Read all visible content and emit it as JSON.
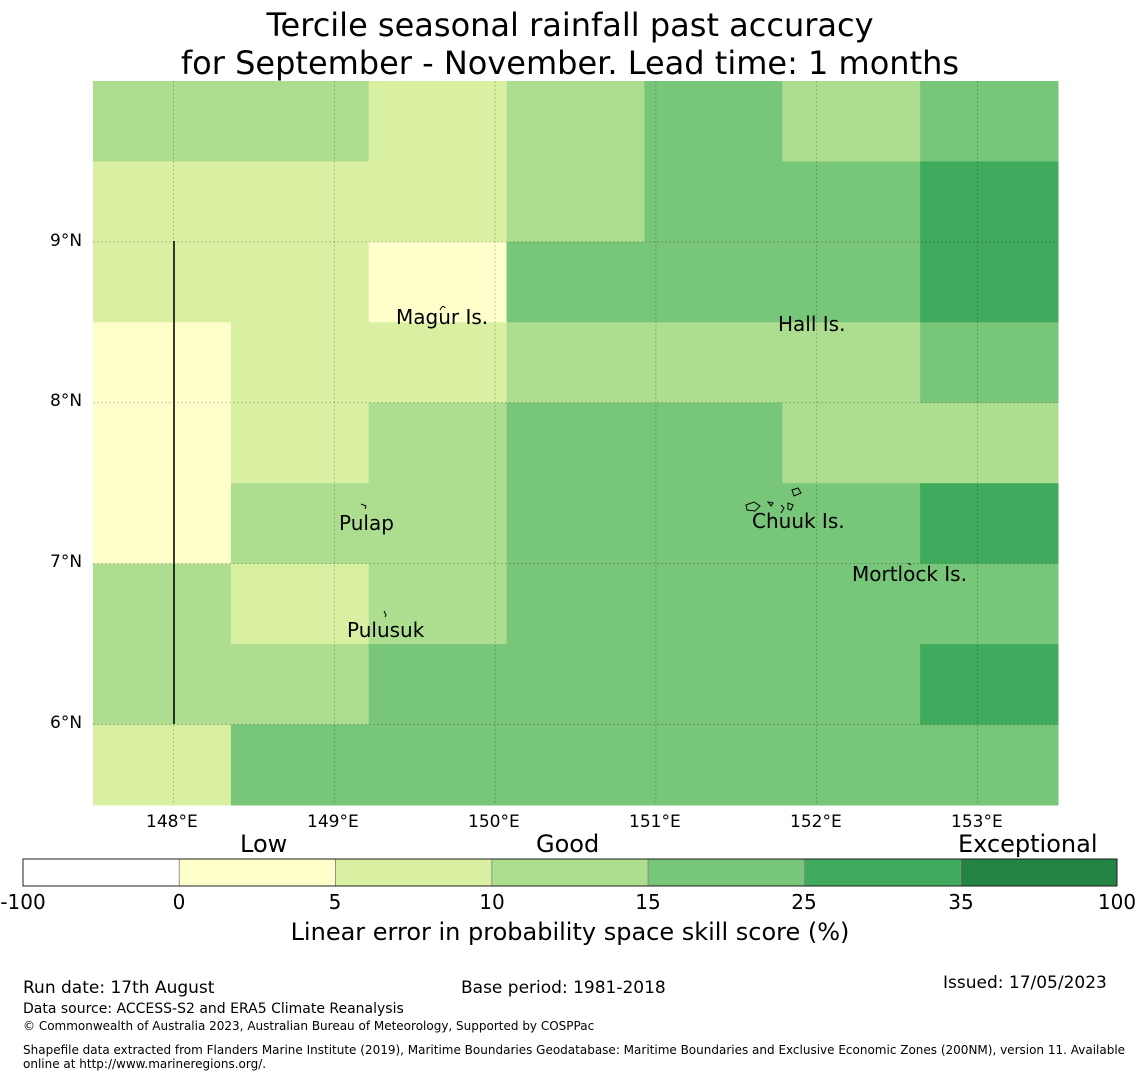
{
  "title": {
    "line1": "Tercile seasonal rainfall past accuracy",
    "line2": "for September - November. Lead time: 1 months"
  },
  "map": {
    "lon_range": [
      147.5,
      153.5
    ],
    "lat_range": [
      5.5,
      10.0
    ],
    "grid_on": true,
    "x_ticks": [
      "148°E",
      "149°E",
      "150°E",
      "151°E",
      "152°E",
      "153°E"
    ],
    "y_ticks": [
      "9°N",
      "8°N",
      "7°N",
      "6°N"
    ],
    "place_labels": [
      {
        "name": "Magur Is.",
        "lon": 149.7,
        "lat": 8.53
      },
      {
        "name": "Hall Is.",
        "lon": 151.97,
        "lat": 8.49
      },
      {
        "name": "Pulap",
        "lon": 149.2,
        "lat": 7.25
      },
      {
        "name": "Chuuk Is.",
        "lon": 151.9,
        "lat": 7.26
      },
      {
        "name": "Mortlock Is.",
        "lon": 152.6,
        "lat": 6.93
      },
      {
        "name": "Pulusuk",
        "lon": 149.3,
        "lat": 6.58
      }
    ],
    "skill_grid_note": "LEPS skill category per grid cell (1=0-5, 2=5-10, 3=10-15, 4=15-25, 5=25-35)",
    "skill_cell_size_deg": [
      0.833,
      0.556
    ],
    "skill_rows": [
      [
        3,
        3,
        2,
        3,
        4,
        3,
        4
      ],
      [
        2,
        2,
        2,
        3,
        4,
        4,
        5
      ],
      [
        2,
        2,
        1,
        4,
        4,
        4,
        5
      ],
      [
        1,
        2,
        2,
        3,
        3,
        3,
        4
      ],
      [
        1,
        2,
        3,
        4,
        4,
        3,
        3
      ],
      [
        1,
        3,
        3,
        4,
        4,
        4,
        5
      ],
      [
        3,
        2,
        3,
        4,
        4,
        4,
        4
      ],
      [
        3,
        3,
        4,
        4,
        4,
        4,
        5
      ],
      [
        2,
        4,
        4,
        4,
        4,
        4,
        4
      ]
    ]
  },
  "colorbar": {
    "categories": [
      "Low",
      "Good",
      "Exceptional"
    ],
    "ticks": [
      "-100",
      "0",
      "5",
      "10",
      "15",
      "25",
      "35",
      "100"
    ],
    "colors": [
      "#ffffff",
      "#ffffcc",
      "#d9f0a3",
      "#addd8e",
      "#78c679",
      "#41ab5d",
      "#238443"
    ],
    "title": "Linear error in probability space skill score (%)"
  },
  "footer": {
    "run_date": "Run date: 17th August",
    "base_period": "Base period: 1981-2018",
    "issued": "Issued: 17/05/2023",
    "data_source": "Data source: ACCESS-S2 and ERA5 Climate Reanalysis",
    "copyright": "© Commonwealth of Australia 2023, Australian Bureau of Meteorology, Supported by COSPPac",
    "shapefile": "Shapefile data extracted from Flanders Marine Institute (2019), Maritime Boundaries Geodatabase: Maritime Boundaries and Exclusive Economic Zones (200NM), version 11. Available online at http://www.marineregions.org/."
  }
}
